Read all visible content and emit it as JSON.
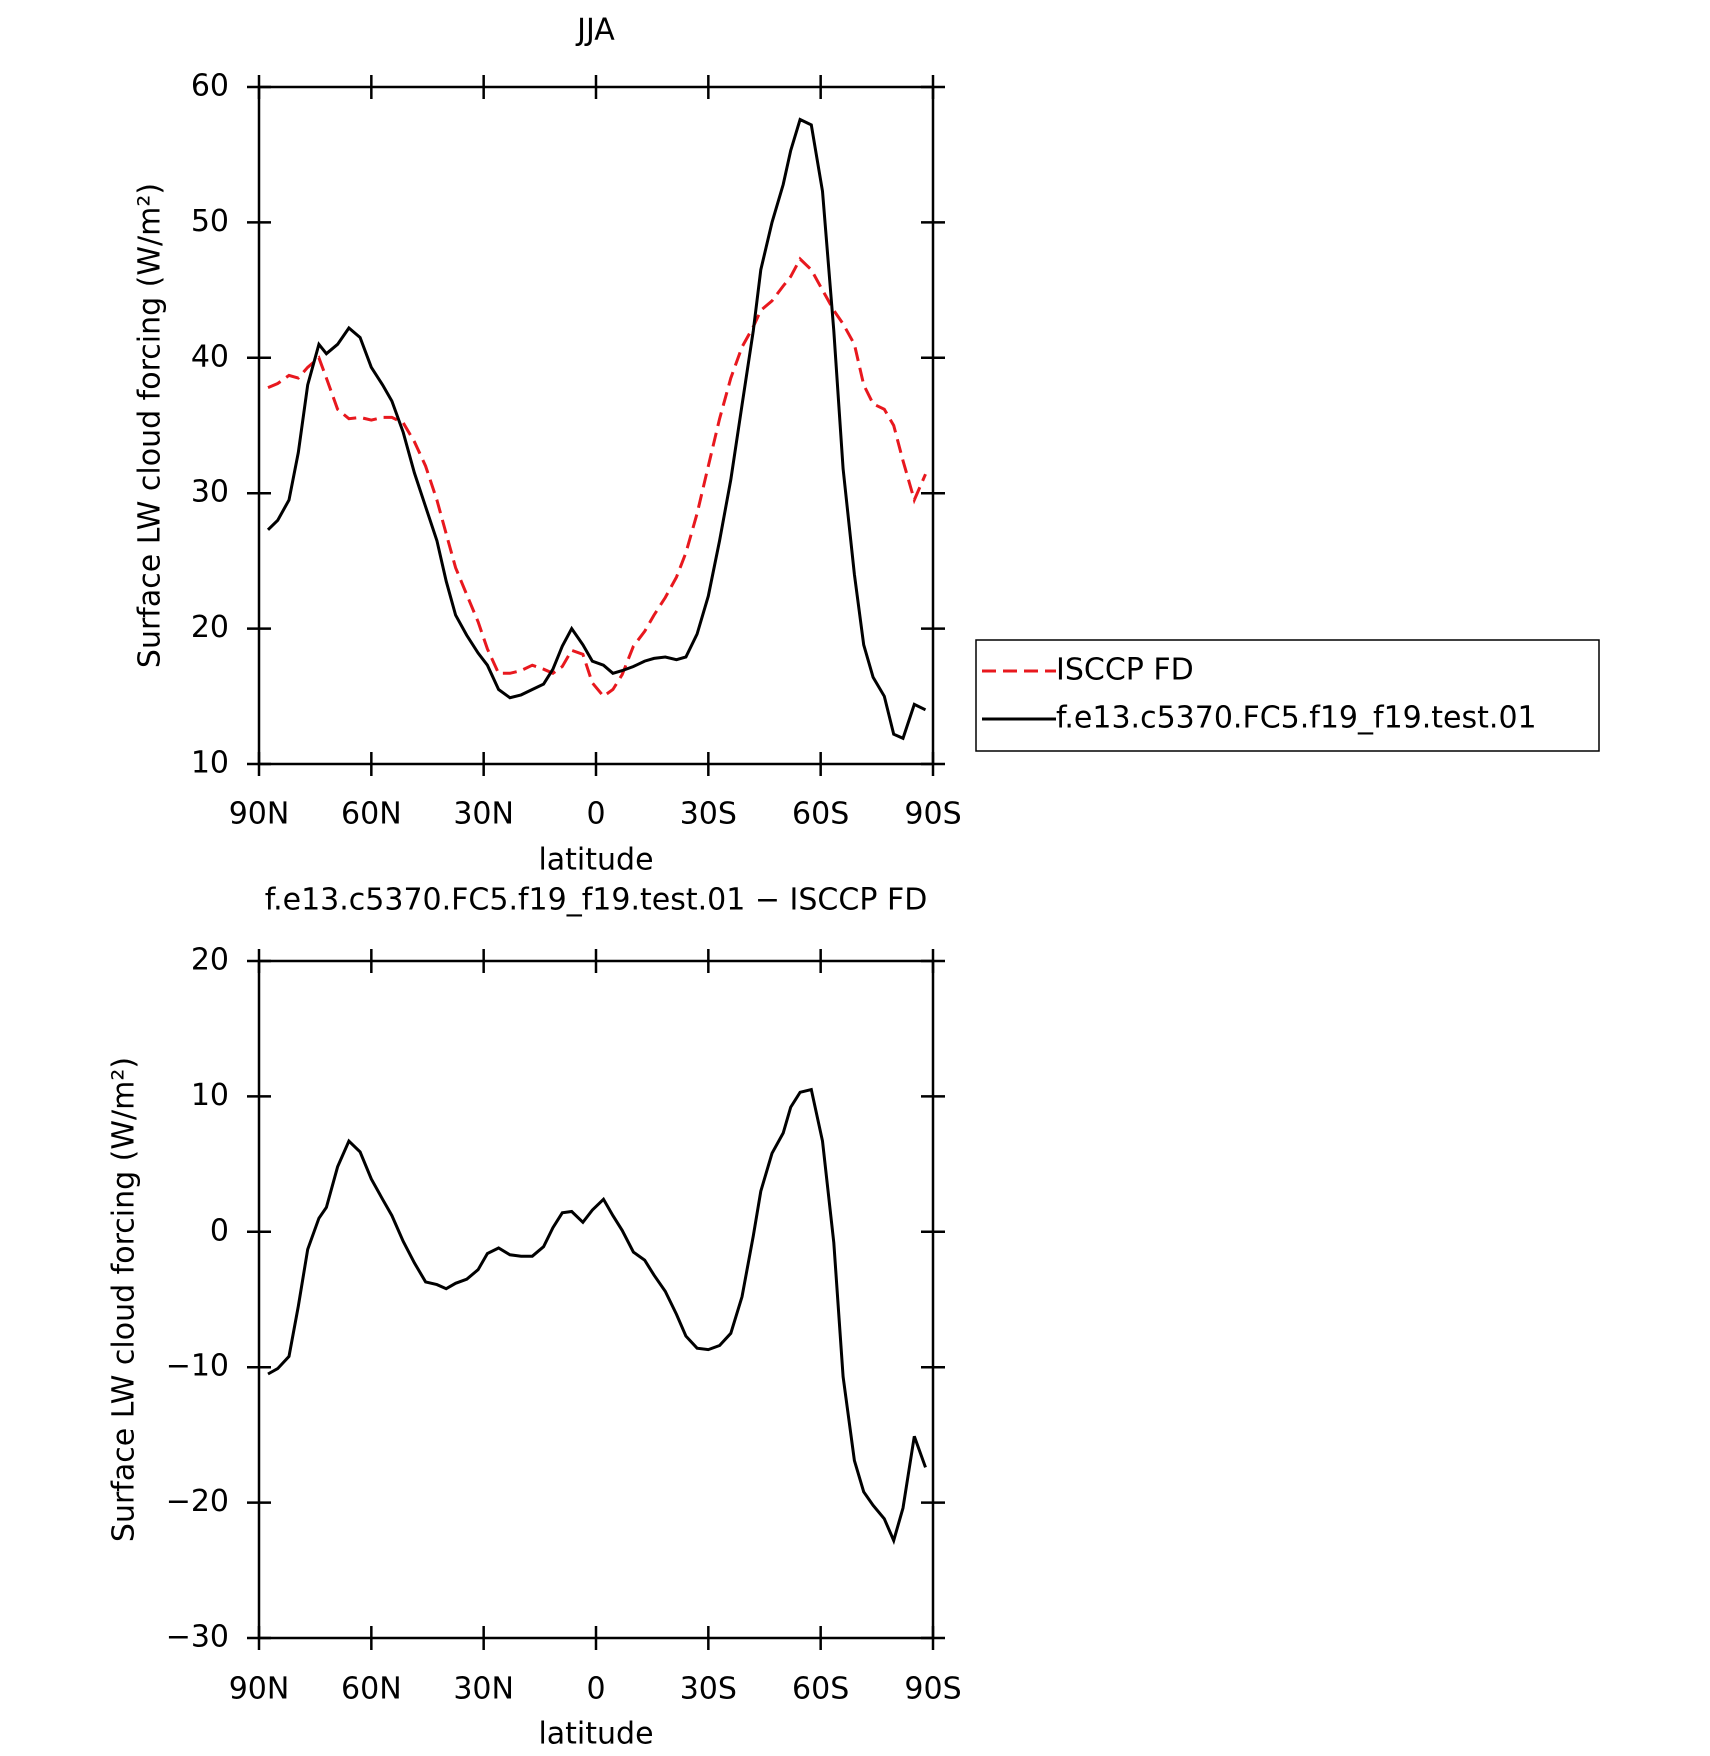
{
  "chart_data": [
    {
      "type": "line",
      "title": "JJA",
      "xlabel": "latitude",
      "ylabel": "Surface LW cloud forcing (W/m²)",
      "x": [
        87.6,
        85,
        82,
        79.5,
        77,
        74,
        72,
        69,
        66,
        63,
        60,
        57,
        54.5,
        51.5,
        48.5,
        45.5,
        42.5,
        40,
        37.5,
        34.5,
        31.5,
        29,
        26,
        23,
        20,
        17,
        14,
        11.5,
        9,
        6.5,
        3.5,
        1,
        -2,
        -4.5,
        -7,
        -10,
        -13,
        -15.5,
        -18.5,
        -21.5,
        -24,
        -27,
        -30,
        -33,
        -36,
        -39,
        -42,
        -44,
        -47,
        -50,
        -52,
        -54.5,
        -57.5,
        -60.5,
        -63.5,
        -66,
        -69,
        -71.5,
        -74,
        -77,
        -79.5,
        -82,
        -85,
        -88
      ],
      "series": [
        {
          "name": "ISCCP FD",
          "color": "#e8181e",
          "line_style": "dashed",
          "values": [
            37.8,
            38.1,
            38.7,
            38.5,
            39.3,
            40,
            38.5,
            36.2,
            35.5,
            35.6,
            35.4,
            35.6,
            35.6,
            35.2,
            33.8,
            32,
            29.5,
            27,
            24.5,
            22.5,
            20.5,
            18.5,
            16.7,
            16.7,
            16.9,
            17.3,
            17,
            16.7,
            17.2,
            18.4,
            18.1,
            16,
            15,
            15.5,
            16.6,
            18.7,
            19.8,
            21,
            22.3,
            23.8,
            25.6,
            28.5,
            32,
            35.5,
            38.5,
            40.8,
            42.3,
            43.5,
            44.2,
            45.3,
            46,
            47.3,
            46.5,
            45,
            43.5,
            42.5,
            41,
            38,
            36.6,
            36.2,
            35,
            32.4,
            29.5,
            31.4
          ]
        },
        {
          "name": "f.e13.c5370.FC5.f19_f19.test.01",
          "color": "#000000",
          "line_style": "solid",
          "values": [
            27.3,
            28,
            29.5,
            33,
            38,
            41,
            40.3,
            41,
            42.2,
            41.5,
            39.3,
            38,
            36.8,
            34.5,
            31.5,
            29,
            26.5,
            23.5,
            21,
            19.5,
            18.2,
            17.3,
            15.5,
            14.9,
            15.1,
            15.5,
            15.9,
            17,
            18.7,
            20,
            18.8,
            17.6,
            17.3,
            16.7,
            16.9,
            17.2,
            17.6,
            17.8,
            17.9,
            17.7,
            17.9,
            19.6,
            22.4,
            26.5,
            31,
            36.5,
            42,
            46.5,
            50,
            52.8,
            55.3,
            57.6,
            57.2,
            52.3,
            42,
            31.8,
            24,
            18.8,
            16.4,
            15,
            12.2,
            11.9,
            14.4,
            14
          ]
        }
      ],
      "xlim": [
        90,
        -90
      ],
      "xticks": [
        {
          "value": 90,
          "label": "90N"
        },
        {
          "value": 60,
          "label": "60N"
        },
        {
          "value": 30,
          "label": "30N"
        },
        0,
        {
          "value": -30,
          "label": "30S"
        },
        {
          "value": -60,
          "label": "60S"
        },
        {
          "value": -90,
          "label": "90S"
        }
      ],
      "ylim": [
        10,
        60
      ],
      "yticks": [
        10,
        20,
        30,
        40,
        50,
        60
      ],
      "legend": "right"
    },
    {
      "type": "line",
      "title": "f.e13.c5370.FC5.f19_f19.test.01 − ISCCP FD",
      "xlabel": "latitude",
      "ylabel": "Surface LW cloud forcing (W/m²)",
      "x": [
        87.6,
        85,
        82,
        79.5,
        77,
        74,
        72,
        69,
        66,
        63,
        60,
        57,
        54.5,
        51.5,
        48.5,
        45.5,
        42.5,
        40,
        37.5,
        34.5,
        31.5,
        29,
        26,
        23,
        20,
        17,
        14,
        11.5,
        9,
        6.5,
        3.5,
        1,
        -2,
        -4.5,
        -7,
        -10,
        -13,
        -15.5,
        -18.5,
        -21.5,
        -24,
        -27,
        -30,
        -33,
        -36,
        -39,
        -42,
        -44,
        -47,
        -50,
        -52,
        -54.5,
        -57.5,
        -60.5,
        -63.5,
        -66,
        -69,
        -71.5,
        -74,
        -77,
        -79.5,
        -82,
        -85,
        -88
      ],
      "series": [
        {
          "color": "#000000",
          "line_style": "solid",
          "values": [
            -10.5,
            -10.1,
            -9.2,
            -5.5,
            -1.3,
            1,
            1.8,
            4.8,
            6.7,
            5.9,
            3.9,
            2.4,
            1.2,
            -0.7,
            -2.3,
            -3.7,
            -3.9,
            -4.2,
            -3.8,
            -3.5,
            -2.8,
            -1.6,
            -1.2,
            -1.7,
            -1.8,
            -1.8,
            -1.1,
            0.3,
            1.4,
            1.5,
            0.7,
            1.6,
            2.4,
            1.2,
            0.1,
            -1.5,
            -2.1,
            -3.2,
            -4.4,
            -6.1,
            -7.7,
            -8.6,
            -8.7,
            -8.4,
            -7.5,
            -4.8,
            -0.3,
            3,
            5.8,
            7.3,
            9.2,
            10.3,
            10.5,
            6.7,
            -0.8,
            -10.7,
            -16.9,
            -19.2,
            -20.2,
            -21.2,
            -22.8,
            -20.4,
            -15.1,
            -17.4
          ]
        }
      ],
      "xlim": [
        90,
        -90
      ],
      "xticks": [
        {
          "value": 90,
          "label": "90N"
        },
        {
          "value": 60,
          "label": "60N"
        },
        {
          "value": 30,
          "label": "30N"
        },
        0,
        {
          "value": -30,
          "label": "30S"
        },
        {
          "value": -60,
          "label": "60S"
        },
        {
          "value": -90,
          "label": "90S"
        }
      ],
      "ylim": [
        -30,
        20
      ],
      "yticks": [
        {
          "value": -30,
          "label": "−30"
        },
        {
          "value": -20,
          "label": "−20"
        },
        {
          "value": -10,
          "label": "−10"
        },
        0,
        10,
        20
      ]
    }
  ]
}
